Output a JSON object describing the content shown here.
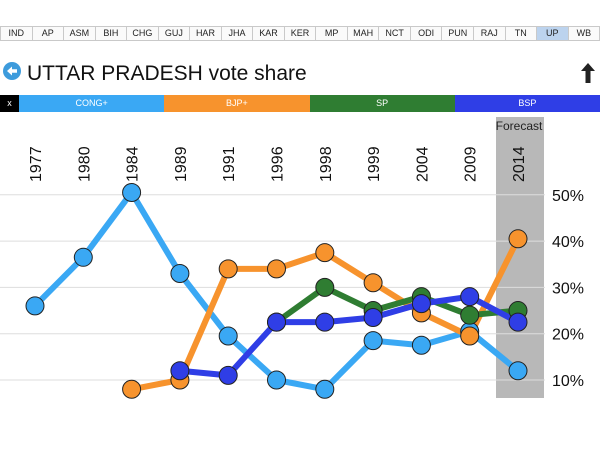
{
  "state_tabs": [
    "IND",
    "AP",
    "ASM",
    "BIH",
    "CHG",
    "GUJ",
    "HAR",
    "JHA",
    "KAR",
    "KER",
    "MP",
    "MAH",
    "NCT",
    "ODI",
    "PUN",
    "RAJ",
    "TN",
    "UP",
    "WB"
  ],
  "active_state": "UP",
  "title": "UTTAR PRADESH vote share",
  "icons": {
    "back": "back-arrow-icon",
    "up": "up-arrow-icon"
  },
  "party_bar": {
    "close_label": "x",
    "parties": [
      {
        "name": "CONG+",
        "color": "#3aa8f4"
      },
      {
        "name": "BJP+",
        "color": "#f7932d"
      },
      {
        "name": "SP",
        "color": "#2f7d32"
      },
      {
        "name": "BSP",
        "color": "#2f3ee6"
      }
    ]
  },
  "chart_data": {
    "type": "line",
    "categories": [
      "1977",
      "1980",
      "1984",
      "1989",
      "1991",
      "1996",
      "1998",
      "1999",
      "2004",
      "2009",
      "2014"
    ],
    "series": [
      {
        "name": "CONG+",
        "color": "#3aa8f4",
        "values": [
          26,
          36.5,
          50.5,
          33,
          19.5,
          10,
          8,
          18.5,
          17.5,
          20.5,
          12
        ]
      },
      {
        "name": "BJP+",
        "color": "#f7932d",
        "values": [
          null,
          null,
          8,
          10,
          34,
          34,
          37.5,
          31,
          24.5,
          19.5,
          40.5
        ]
      },
      {
        "name": "SP",
        "color": "#2f7d32",
        "values": [
          null,
          null,
          null,
          null,
          null,
          22.5,
          30,
          25,
          28,
          24,
          25
        ]
      },
      {
        "name": "BSP",
        "color": "#2f3ee6",
        "values": [
          null,
          null,
          null,
          12,
          11,
          22.5,
          22.5,
          23.5,
          26.5,
          28,
          22.5
        ]
      }
    ],
    "ylim": [
      5,
      52
    ],
    "yticks": [
      {
        "value": 10,
        "label": "10%"
      },
      {
        "value": 20,
        "label": "20%"
      },
      {
        "value": 30,
        "label": "30%"
      },
      {
        "value": 40,
        "label": "40%"
      },
      {
        "value": 50,
        "label": "50%"
      }
    ],
    "grid": true,
    "forecast": {
      "category": "2014",
      "label": "Forecast"
    }
  }
}
